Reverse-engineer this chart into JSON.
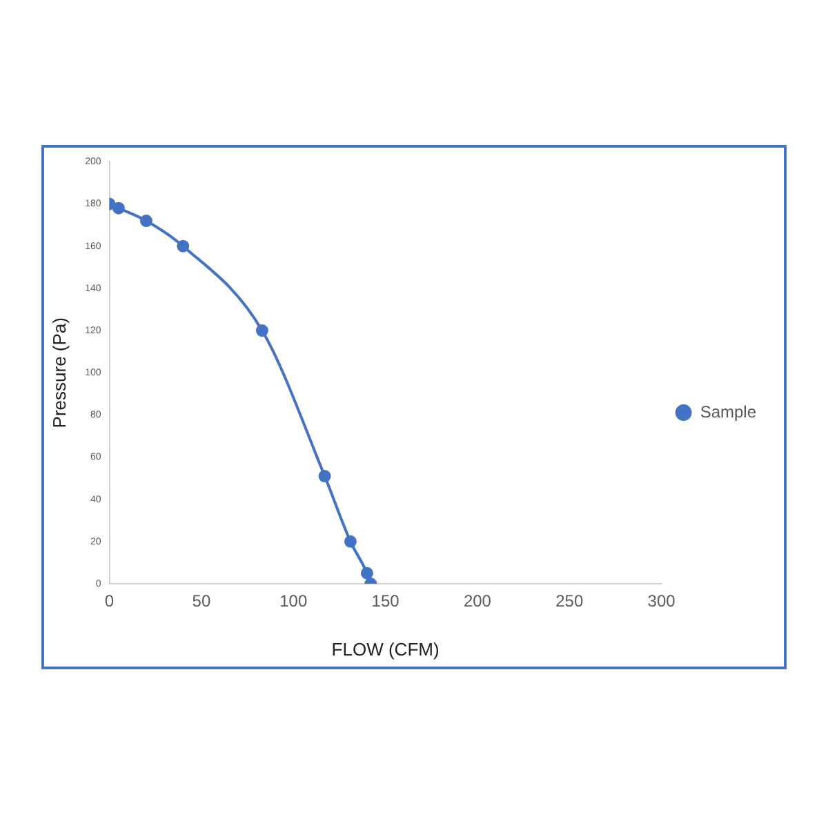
{
  "chart_data": {
    "type": "line",
    "xlabel": "FLOW (CFM)",
    "ylabel": "Pressure (Pa)",
    "x": [
      0,
      5,
      20,
      40,
      83,
      117,
      131,
      140,
      142
    ],
    "series": [
      {
        "name": "Sample",
        "color": "#4472c4",
        "values": [
          180,
          178,
          172,
          160,
          120,
          51,
          20,
          5,
          0
        ]
      }
    ],
    "xlim": [
      0,
      300
    ],
    "xticks": [
      0,
      50,
      100,
      150,
      200,
      250,
      300
    ],
    "ylim": [
      0,
      200
    ],
    "yticks": [
      0,
      20,
      40,
      60,
      80,
      100,
      120,
      140,
      160,
      180,
      200
    ],
    "grid": false,
    "legend": "right",
    "marker": "circle",
    "line_style": "solid"
  }
}
